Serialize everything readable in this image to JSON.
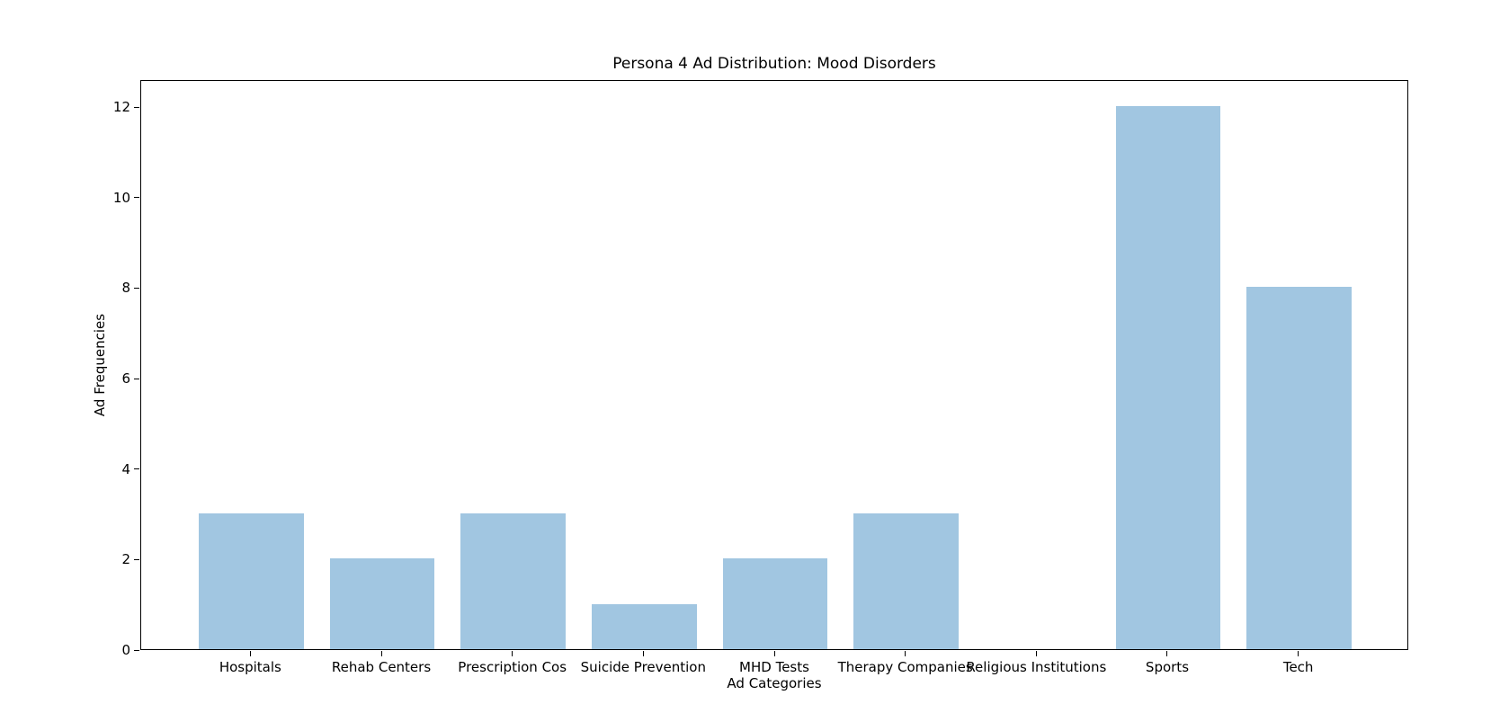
{
  "chart_data": {
    "type": "bar",
    "title": "Persona 4 Ad Distribution: Mood Disorders",
    "xlabel": "Ad Categories",
    "ylabel": "Ad Frequencies",
    "categories": [
      "Hospitals",
      "Rehab Centers",
      "Prescription Cos",
      "Suicide Prevention",
      "MHD Tests",
      "Therapy Companies",
      "Religious Institutions",
      "Sports",
      "Tech"
    ],
    "values": [
      3,
      2,
      3,
      1,
      2,
      3,
      0,
      12,
      8
    ],
    "yticks": [
      0,
      2,
      4,
      6,
      8,
      10,
      12
    ],
    "ylim": [
      0,
      12.6
    ],
    "bar_color": "#a1c6e1",
    "axis_color": "#000000",
    "background_color": "#ffffff",
    "grid": false,
    "legend": "none"
  }
}
